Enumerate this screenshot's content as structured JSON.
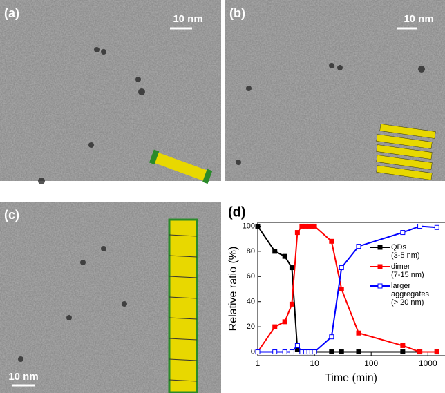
{
  "panels": [
    {
      "label": "(a)",
      "scale_bar": "10 nm"
    },
    {
      "label": "(b)",
      "scale_bar": "10 nm"
    },
    {
      "label": "(c)",
      "scale_bar": "10 nm"
    }
  ],
  "chart_data": {
    "type": "line",
    "panel_label": "(d)",
    "x_label": "Time (min)",
    "y_label": "Relative ratio (%)",
    "x": [
      1,
      2,
      3,
      4,
      5,
      6,
      7,
      8,
      9,
      10,
      20,
      30,
      60,
      360,
      720,
      1440
    ],
    "series": [
      {
        "name": "QDs\n(3-5 nm)",
        "color": "#000000",
        "marker": "filled",
        "values": [
          100,
          80,
          76,
          67,
          2,
          0,
          0,
          0,
          0,
          0,
          0,
          0,
          0,
          0,
          0,
          0
        ]
      },
      {
        "name": "dimer\n(7-15 nm)",
        "color": "#ff0000",
        "marker": "filled",
        "values": [
          0,
          20,
          24,
          38,
          95,
          100,
          100,
          100,
          100,
          100,
          88,
          50,
          15,
          5,
          0,
          0
        ]
      },
      {
        "name": "larger aggregates\n(> 20 nm)",
        "color": "#0000ff",
        "marker": "open",
        "values": [
          0,
          0,
          0,
          0,
          5,
          0,
          0,
          0,
          0,
          0,
          12,
          67,
          84,
          95,
          100,
          99
        ]
      }
    ],
    "xscale": "log",
    "xlim": [
      1,
      2000
    ],
    "xticks": [
      1,
      10,
      100,
      1000
    ],
    "ylim": [
      -3,
      103
    ],
    "yticks": [
      0,
      20,
      40,
      60,
      80,
      100
    ]
  }
}
